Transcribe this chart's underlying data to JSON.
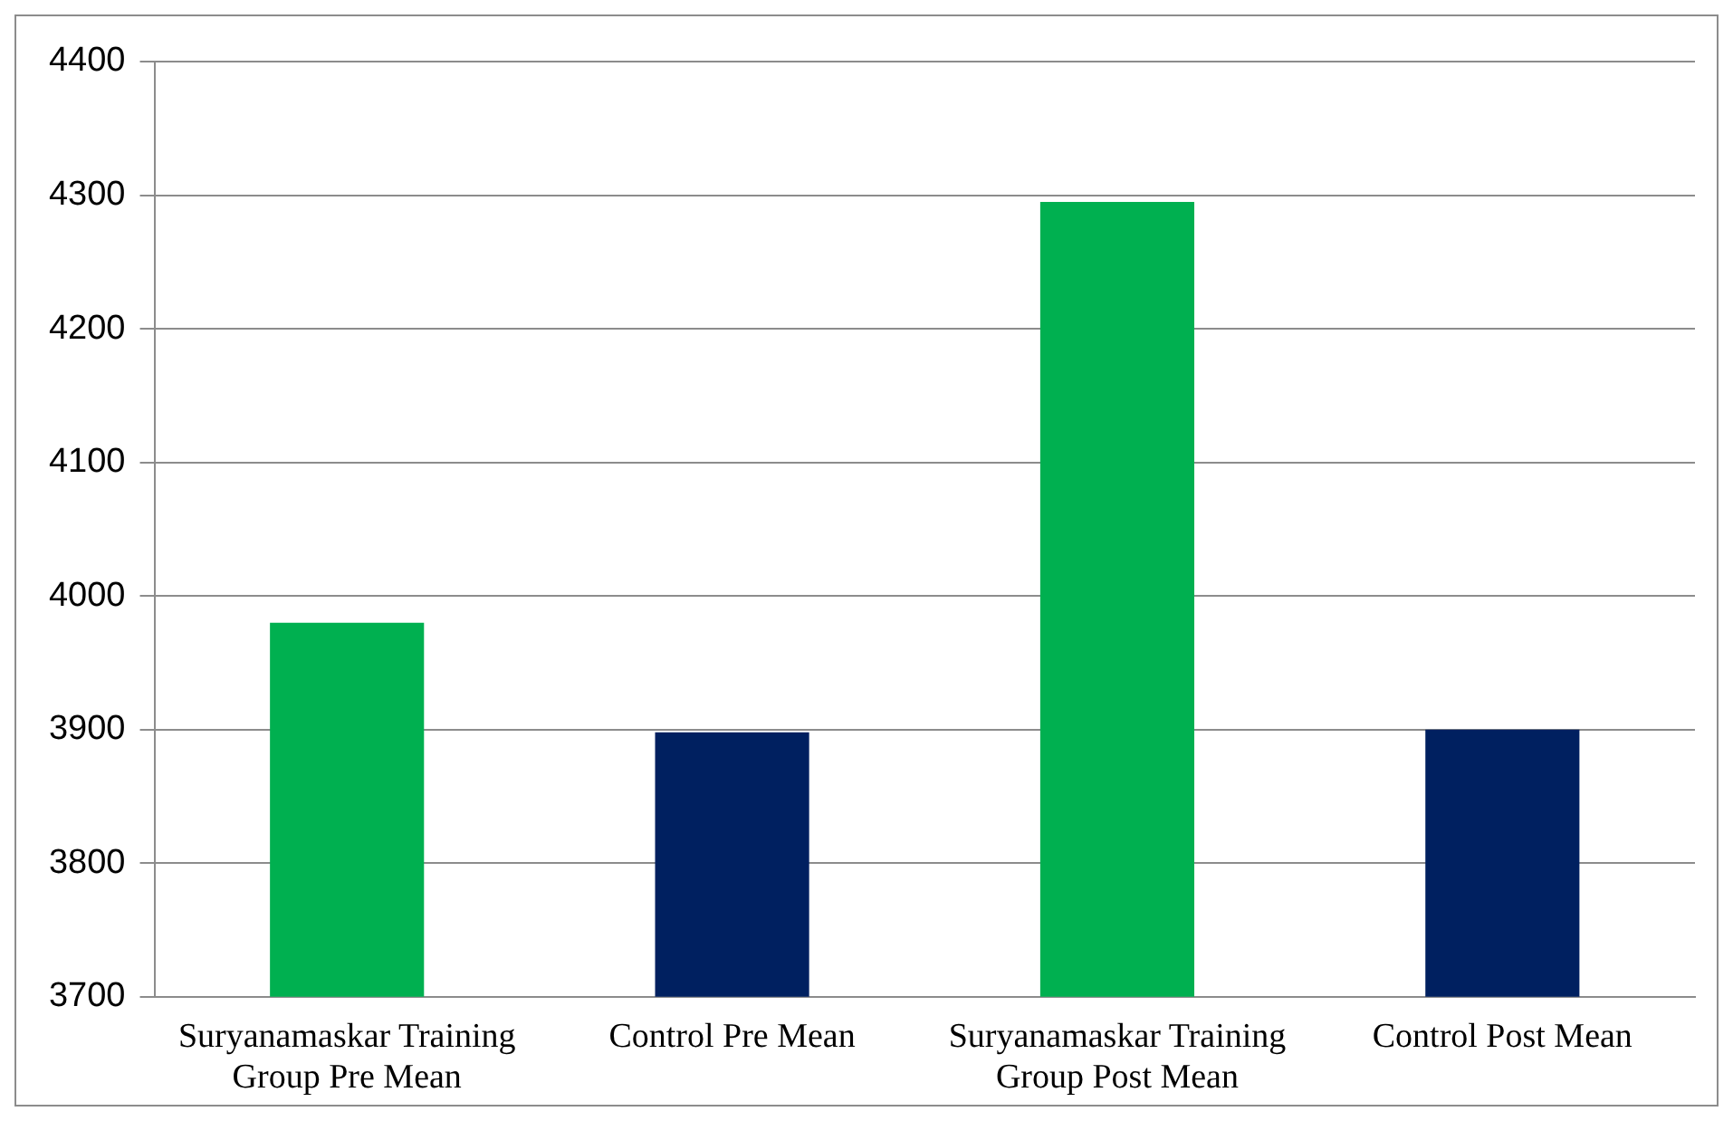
{
  "chart_data": {
    "type": "bar",
    "categories": [
      "Suryanamaskar Training Group Pre Mean",
      "Control Pre Mean",
      "Suryanamaskar Training Group Post Mean",
      "Control Post Mean"
    ],
    "values": [
      3980,
      3898,
      4295,
      3900
    ],
    "colors": [
      "#00b050",
      "#002060",
      "#00b050",
      "#002060"
    ],
    "ylim": [
      3700,
      4400
    ],
    "yticks": [
      3700,
      3800,
      3900,
      4000,
      4100,
      4200,
      4300,
      4400
    ],
    "grid": "y",
    "legend": false
  }
}
